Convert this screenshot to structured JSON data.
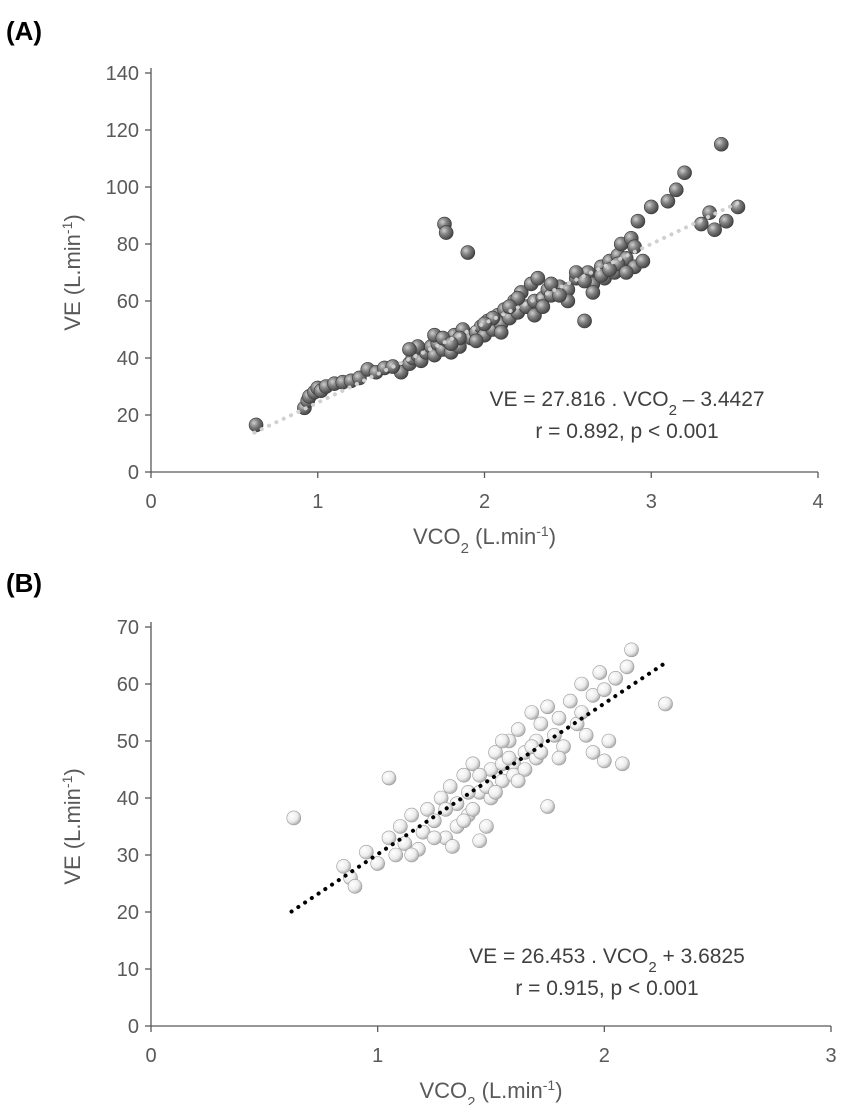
{
  "chart_data": [
    {
      "panel": "(A)",
      "type": "scatter",
      "xlabel_main": "VCO",
      "xlabel_sub": "2",
      "xlabel_rest": " (L.min",
      "xlabel_sup": "-1",
      "xlabel_close": ")",
      "ylabel_main": "VE (L.min",
      "ylabel_sup": "-1",
      "ylabel_close": ")",
      "xlim": [
        0,
        4
      ],
      "ylim": [
        0,
        140
      ],
      "xticks": [
        0,
        1,
        2,
        3,
        4
      ],
      "yticks": [
        0,
        20,
        40,
        60,
        80,
        100,
        120,
        140
      ],
      "marker_color": "#7a7a7a",
      "marker_style": "dark-sphere",
      "trendline": {
        "slope": 27.816,
        "intercept": -3.4427,
        "x_range": [
          0.62,
          3.52
        ],
        "color": "#d0d0d0",
        "style": "dotted"
      },
      "equation_line1_a": "VE = 27.816 . VCO",
      "equation_line1_sub": "2",
      "equation_line1_b": " – 3.4427",
      "equation_line2": "r = 0.892, p < 0.001",
      "points": [
        [
          0.63,
          16.5
        ],
        [
          0.92,
          22.5
        ],
        [
          0.94,
          25
        ],
        [
          0.95,
          26.5
        ],
        [
          0.98,
          28
        ],
        [
          1.0,
          29.5
        ],
        [
          1.02,
          28.5
        ],
        [
          1.05,
          30
        ],
        [
          1.1,
          31
        ],
        [
          1.15,
          31.5
        ],
        [
          1.2,
          32
        ],
        [
          1.25,
          33
        ],
        [
          1.3,
          36
        ],
        [
          1.35,
          35
        ],
        [
          1.4,
          36.5
        ],
        [
          1.5,
          35
        ],
        [
          1.55,
          38
        ],
        [
          1.57,
          40
        ],
        [
          1.6,
          41
        ],
        [
          1.62,
          39
        ],
        [
          1.65,
          42
        ],
        [
          1.68,
          44
        ],
        [
          1.7,
          41
        ],
        [
          1.72,
          45
        ],
        [
          1.75,
          43
        ],
        [
          1.76,
          87
        ],
        [
          1.77,
          84
        ],
        [
          1.78,
          46
        ],
        [
          1.8,
          42
        ],
        [
          1.82,
          48
        ],
        [
          1.85,
          44
        ],
        [
          1.87,
          50
        ],
        [
          1.9,
          77
        ],
        [
          1.92,
          47
        ],
        [
          1.95,
          49
        ],
        [
          1.98,
          51
        ],
        [
          2.0,
          48
        ],
        [
          2.02,
          53
        ],
        [
          2.05,
          50
        ],
        [
          2.08,
          55
        ],
        [
          2.1,
          52
        ],
        [
          2.12,
          57
        ],
        [
          2.15,
          54
        ],
        [
          2.18,
          60
        ],
        [
          2.2,
          56
        ],
        [
          2.22,
          63
        ],
        [
          2.25,
          58
        ],
        [
          2.28,
          66
        ],
        [
          2.3,
          60
        ],
        [
          2.32,
          68
        ],
        [
          2.35,
          61
        ],
        [
          2.38,
          64
        ],
        [
          2.4,
          62
        ],
        [
          2.45,
          65
        ],
        [
          2.5,
          64
        ],
        [
          2.55,
          68
        ],
        [
          2.6,
          53
        ],
        [
          2.62,
          70
        ],
        [
          2.65,
          66
        ],
        [
          2.7,
          72
        ],
        [
          2.72,
          68
        ],
        [
          2.75,
          74
        ],
        [
          2.78,
          70
        ],
        [
          2.8,
          76
        ],
        [
          2.82,
          80
        ],
        [
          2.85,
          75
        ],
        [
          2.88,
          82
        ],
        [
          2.9,
          72
        ],
        [
          2.92,
          88
        ],
        [
          2.95,
          74
        ],
        [
          3.0,
          93
        ],
        [
          3.1,
          95
        ],
        [
          3.15,
          99
        ],
        [
          3.2,
          105
        ],
        [
          3.3,
          87
        ],
        [
          3.35,
          91
        ],
        [
          3.38,
          85
        ],
        [
          3.42,
          115
        ],
        [
          3.45,
          88
        ],
        [
          3.52,
          93
        ],
        [
          1.6,
          44
        ],
        [
          1.7,
          48
        ],
        [
          1.85,
          47
        ],
        [
          2.05,
          54
        ],
        [
          2.2,
          61
        ],
        [
          2.4,
          66
        ],
        [
          2.55,
          70
        ],
        [
          2.7,
          69
        ],
        [
          2.8,
          73
        ],
        [
          1.95,
          46
        ],
        [
          2.1,
          49
        ],
        [
          2.3,
          55
        ],
        [
          2.5,
          60
        ],
        [
          2.65,
          63
        ],
        [
          2.9,
          79
        ],
        [
          1.55,
          43
        ],
        [
          1.75,
          47
        ],
        [
          2.0,
          52
        ],
        [
          2.35,
          58
        ],
        [
          2.6,
          67
        ],
        [
          2.85,
          70
        ],
        [
          1.45,
          37
        ],
        [
          1.8,
          45
        ],
        [
          2.15,
          58
        ],
        [
          2.45,
          62
        ],
        [
          2.75,
          71
        ]
      ]
    },
    {
      "panel": "(B)",
      "type": "scatter",
      "xlabel_main": "VCO",
      "xlabel_sub": "2",
      "xlabel_rest": " (L.min",
      "xlabel_sup": "-1",
      "xlabel_close": ")",
      "ylabel_main": "VE (L.min",
      "ylabel_sup": "-1",
      "ylabel_close": ")",
      "xlim": [
        0,
        3
      ],
      "ylim": [
        0,
        70
      ],
      "xticks": [
        0,
        1,
        2,
        3
      ],
      "yticks": [
        0,
        10,
        20,
        30,
        40,
        50,
        60,
        70
      ],
      "marker_color": "#f2f2f2",
      "marker_style": "light-sphere",
      "trendline": {
        "slope": 26.453,
        "intercept": 3.6825,
        "x_range": [
          0.62,
          2.27
        ],
        "color": "#000000",
        "style": "dotted"
      },
      "equation_line1_a": "VE = 26.453 . VCO",
      "equation_line1_sub": "2",
      "equation_line1_b": " + 3.6825",
      "equation_line2": "r = 0.915, p < 0.001",
      "points": [
        [
          0.63,
          36.5
        ],
        [
          0.85,
          28
        ],
        [
          0.88,
          26
        ],
        [
          0.9,
          24.5
        ],
        [
          0.95,
          30.5
        ],
        [
          1.0,
          28.5
        ],
        [
          1.05,
          43.5
        ],
        [
          1.05,
          33
        ],
        [
          1.08,
          30
        ],
        [
          1.1,
          35
        ],
        [
          1.12,
          32
        ],
        [
          1.15,
          37
        ],
        [
          1.18,
          31
        ],
        [
          1.2,
          34
        ],
        [
          1.22,
          38
        ],
        [
          1.25,
          36
        ],
        [
          1.28,
          40
        ],
        [
          1.3,
          33
        ],
        [
          1.32,
          42
        ],
        [
          1.35,
          39
        ],
        [
          1.38,
          44
        ],
        [
          1.4,
          37
        ],
        [
          1.42,
          46
        ],
        [
          1.45,
          41
        ],
        [
          1.48,
          35
        ],
        [
          1.5,
          45
        ],
        [
          1.52,
          48
        ],
        [
          1.55,
          43
        ],
        [
          1.58,
          50
        ],
        [
          1.6,
          46
        ],
        [
          1.62,
          52
        ],
        [
          1.65,
          48
        ],
        [
          1.68,
          55
        ],
        [
          1.7,
          50
        ],
        [
          1.72,
          53
        ],
        [
          1.75,
          38.5
        ],
        [
          1.75,
          56
        ],
        [
          1.78,
          51
        ],
        [
          1.8,
          54
        ],
        [
          1.82,
          49
        ],
        [
          1.85,
          57
        ],
        [
          1.88,
          53
        ],
        [
          1.9,
          60
        ],
        [
          1.92,
          51
        ],
        [
          1.95,
          58
        ],
        [
          1.98,
          62
        ],
        [
          2.0,
          46.5
        ],
        [
          2.02,
          50
        ],
        [
          2.05,
          61
        ],
        [
          2.08,
          46
        ],
        [
          2.1,
          63
        ],
        [
          2.12,
          66
        ],
        [
          2.27,
          56.5
        ],
        [
          1.3,
          38
        ],
        [
          1.4,
          41
        ],
        [
          1.5,
          40
        ],
        [
          1.6,
          44
        ],
        [
          1.7,
          47
        ],
        [
          1.45,
          32.5
        ],
        [
          1.35,
          35
        ],
        [
          1.55,
          46
        ],
        [
          1.65,
          45
        ],
        [
          1.25,
          33
        ],
        [
          1.15,
          30
        ],
        [
          1.8,
          47
        ],
        [
          1.9,
          55
        ],
        [
          2.0,
          59
        ],
        [
          1.38,
          36
        ],
        [
          1.48,
          42
        ],
        [
          1.58,
          47
        ],
        [
          1.68,
          49
        ],
        [
          1.42,
          38
        ],
        [
          1.52,
          41
        ],
        [
          1.62,
          43
        ],
        [
          1.72,
          48
        ],
        [
          1.33,
          31.5
        ],
        [
          1.45,
          44
        ],
        [
          1.55,
          50
        ],
        [
          1.95,
          48
        ]
      ]
    }
  ]
}
